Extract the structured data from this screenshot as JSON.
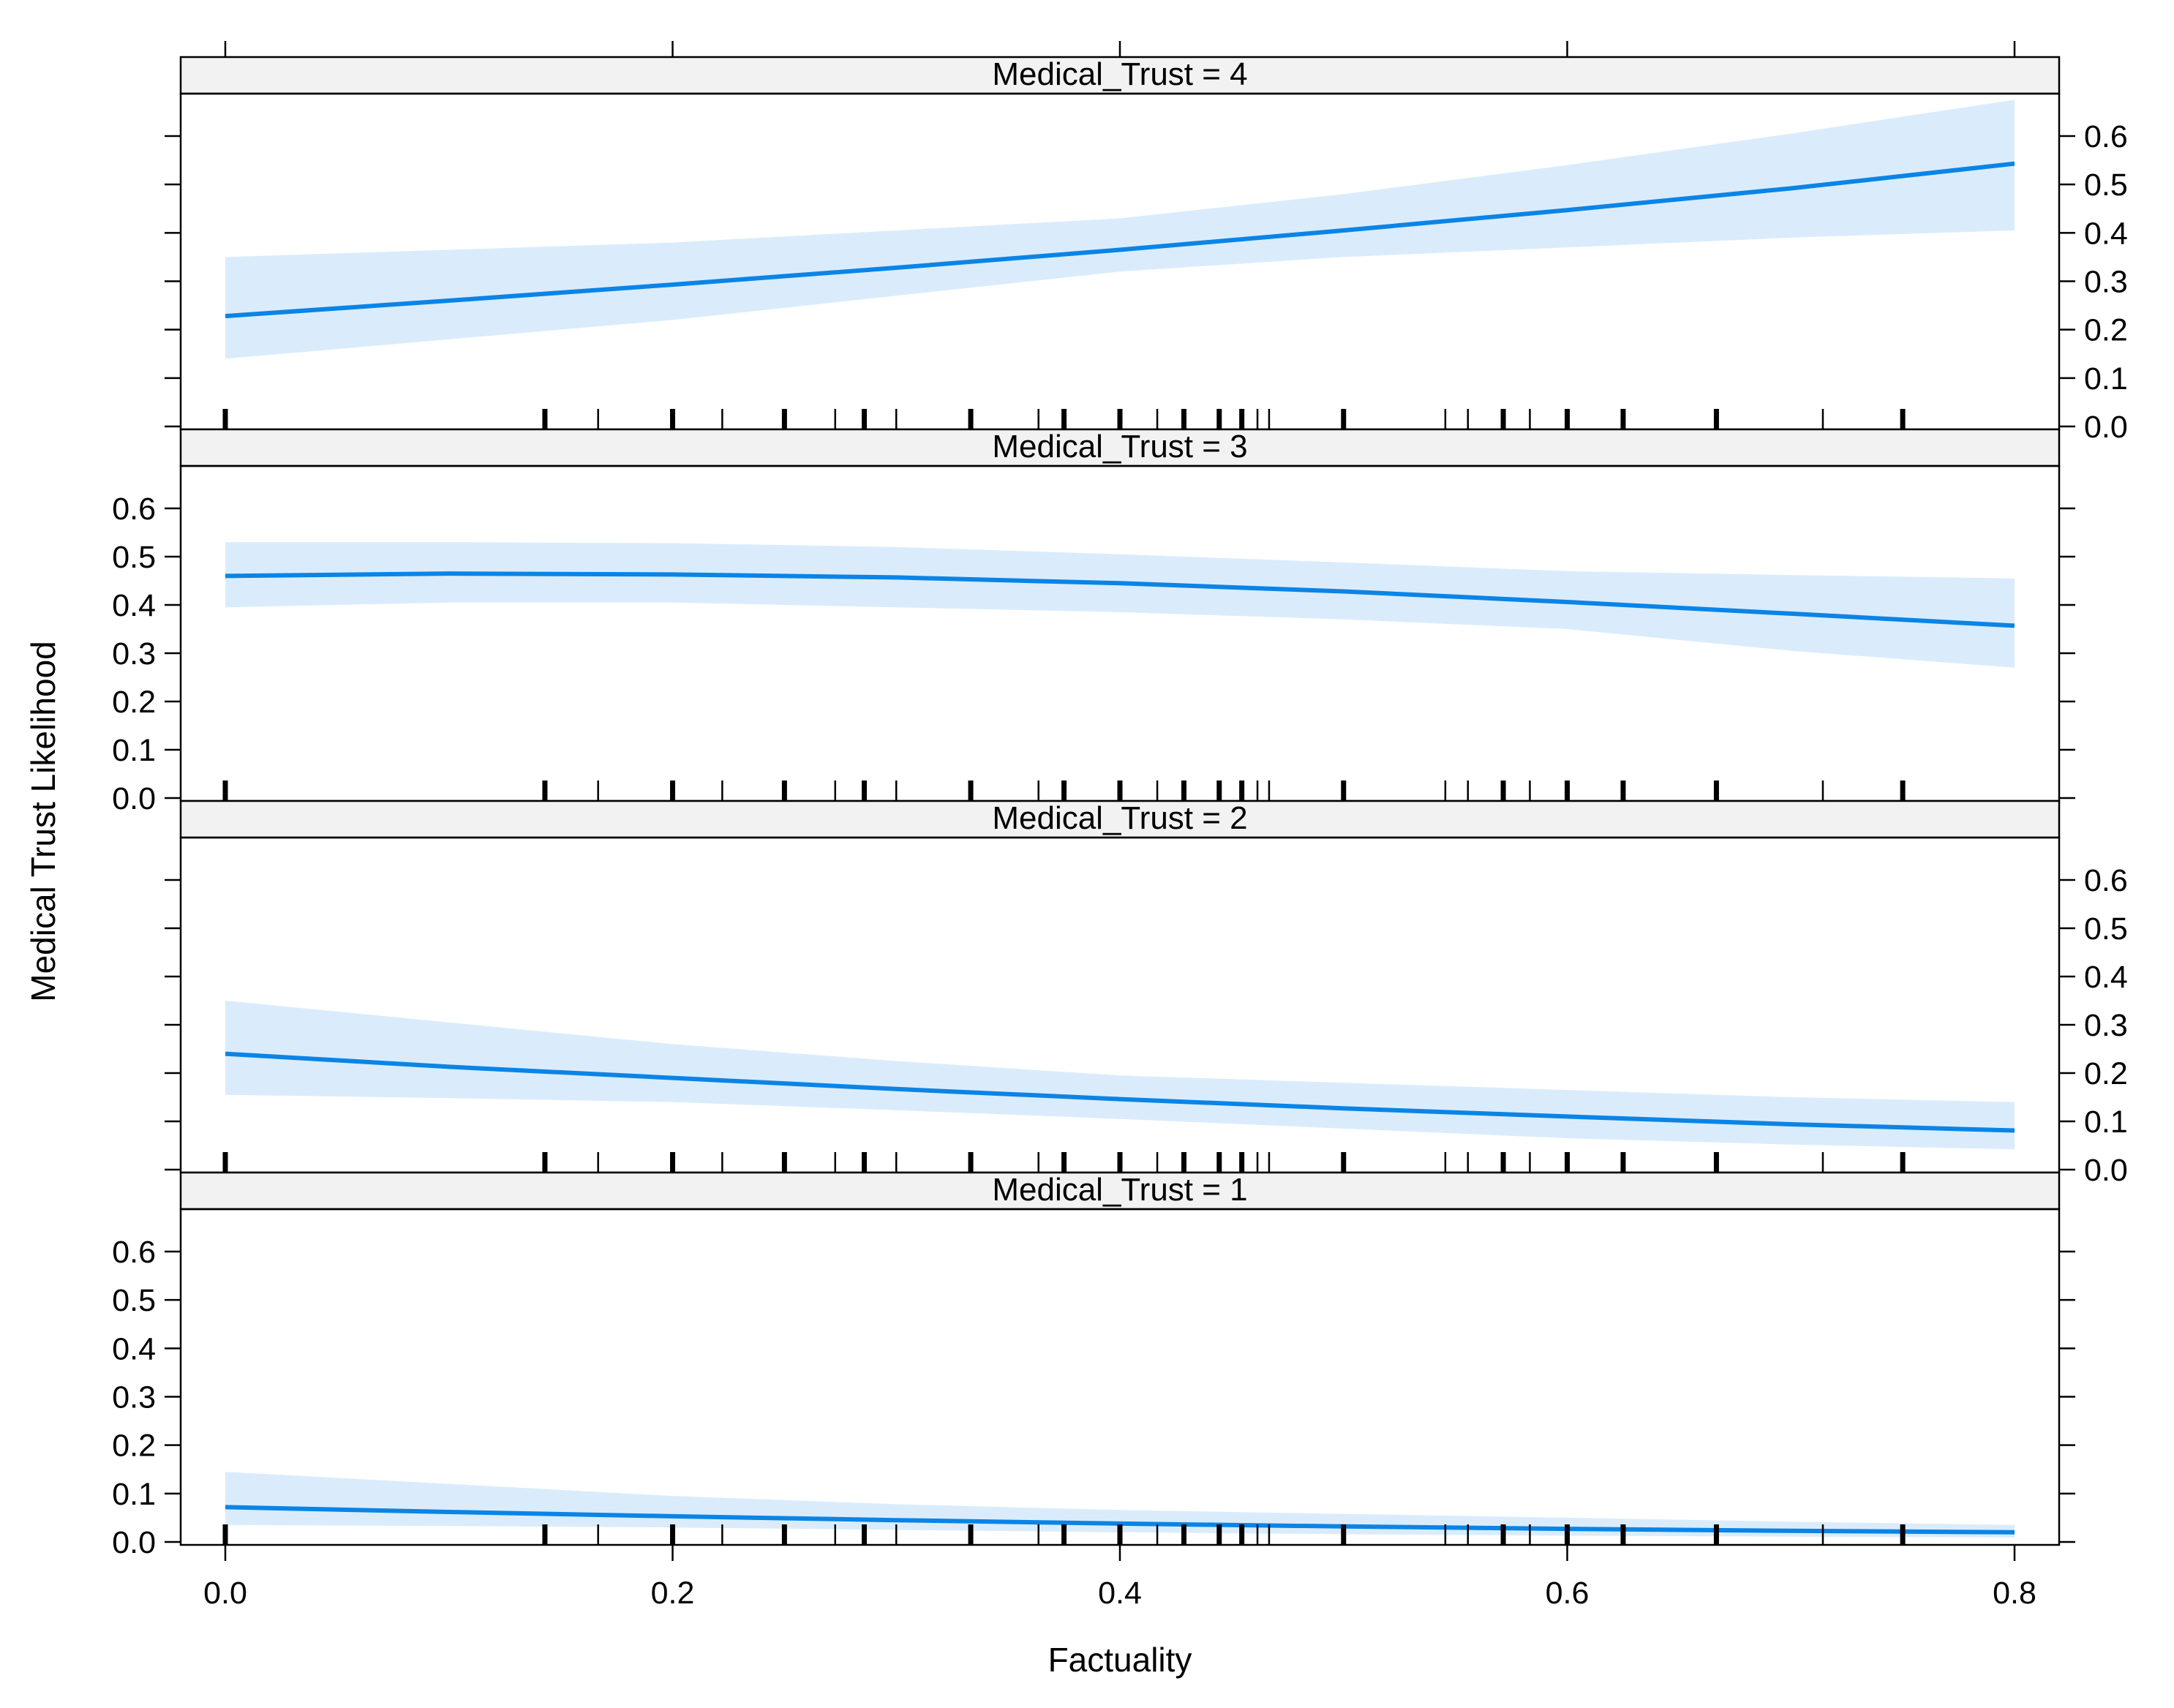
{
  "chart_data": {
    "type": "line",
    "xlabel": "Factuality",
    "ylabel": "Medical Trust Likelihood",
    "xlim": [
      -0.05,
      0.82
    ],
    "ylim": [
      0,
      0.68
    ],
    "x_ticks": [
      0.0,
      0.2,
      0.4,
      0.6,
      0.8
    ],
    "x_tick_labels": [
      "0.0",
      "0.2",
      "0.4",
      "0.6",
      "0.8"
    ],
    "y_ticks": [
      0.0,
      0.1,
      0.2,
      0.3,
      0.4,
      0.5,
      0.6
    ],
    "y_tick_labels": [
      "0.0",
      "0.1",
      "0.2",
      "0.3",
      "0.4",
      "0.5",
      "0.6"
    ],
    "grid": false,
    "colors": {
      "line": "#0a84e6",
      "band": "#daecfc",
      "strip": "#f2f2f2"
    },
    "rug_x": [
      0.0,
      0.1429,
      0.1667,
      0.2,
      0.2222,
      0.25,
      0.2727,
      0.2857,
      0.3,
      0.3333,
      0.3636,
      0.375,
      0.4,
      0.4167,
      0.4286,
      0.4444,
      0.4545,
      0.4615,
      0.4667,
      0.5,
      0.5455,
      0.5556,
      0.5714,
      0.5833,
      0.6,
      0.625,
      0.6667,
      0.7143,
      0.75
    ],
    "rug_thick": [
      0.0,
      0.1429,
      0.2,
      0.25,
      0.2857,
      0.3333,
      0.375,
      0.4,
      0.4286,
      0.4444,
      0.4545,
      0.5,
      0.5714,
      0.6,
      0.625,
      0.6667,
      0.75
    ],
    "panels": [
      {
        "label": "Medical_Trust = 4",
        "x": [
          0.0,
          0.1,
          0.2,
          0.3,
          0.4,
          0.5,
          0.6,
          0.7,
          0.8
        ],
        "y": [
          0.228,
          0.26,
          0.293,
          0.328,
          0.365,
          0.405,
          0.447,
          0.492,
          0.543
        ],
        "lower": [
          0.14,
          0.18,
          0.22,
          0.27,
          0.32,
          0.35,
          0.37,
          0.39,
          0.405
        ],
        "upper": [
          0.35,
          0.365,
          0.38,
          0.405,
          0.43,
          0.48,
          0.54,
          0.605,
          0.675
        ]
      },
      {
        "label": "Medical_Trust = 3",
        "x": [
          0.0,
          0.1,
          0.2,
          0.3,
          0.4,
          0.5,
          0.6,
          0.7,
          0.8
        ],
        "y": [
          0.46,
          0.465,
          0.463,
          0.457,
          0.445,
          0.428,
          0.406,
          0.382,
          0.357
        ],
        "lower": [
          0.395,
          0.405,
          0.405,
          0.395,
          0.385,
          0.37,
          0.35,
          0.305,
          0.27
        ],
        "upper": [
          0.53,
          0.53,
          0.528,
          0.52,
          0.505,
          0.488,
          0.47,
          0.462,
          0.455
        ]
      },
      {
        "label": "Medical_Trust = 2",
        "x": [
          0.0,
          0.1,
          0.2,
          0.3,
          0.4,
          0.5,
          0.6,
          0.7,
          0.8
        ],
        "y": [
          0.24,
          0.213,
          0.19,
          0.167,
          0.146,
          0.127,
          0.11,
          0.094,
          0.081
        ],
        "lower": [
          0.155,
          0.148,
          0.14,
          0.123,
          0.105,
          0.085,
          0.065,
          0.052,
          0.042
        ],
        "upper": [
          0.35,
          0.305,
          0.26,
          0.225,
          0.195,
          0.18,
          0.165,
          0.15,
          0.14
        ]
      },
      {
        "label": "Medical_Trust = 1",
        "x": [
          0.0,
          0.1,
          0.2,
          0.3,
          0.4,
          0.5,
          0.6,
          0.7,
          0.8
        ],
        "y": [
          0.072,
          0.062,
          0.053,
          0.045,
          0.038,
          0.032,
          0.027,
          0.023,
          0.02
        ],
        "lower": [
          0.035,
          0.033,
          0.03,
          0.025,
          0.02,
          0.016,
          0.013,
          0.011,
          0.009
        ],
        "upper": [
          0.145,
          0.12,
          0.095,
          0.078,
          0.066,
          0.058,
          0.05,
          0.042,
          0.035
        ]
      }
    ]
  }
}
